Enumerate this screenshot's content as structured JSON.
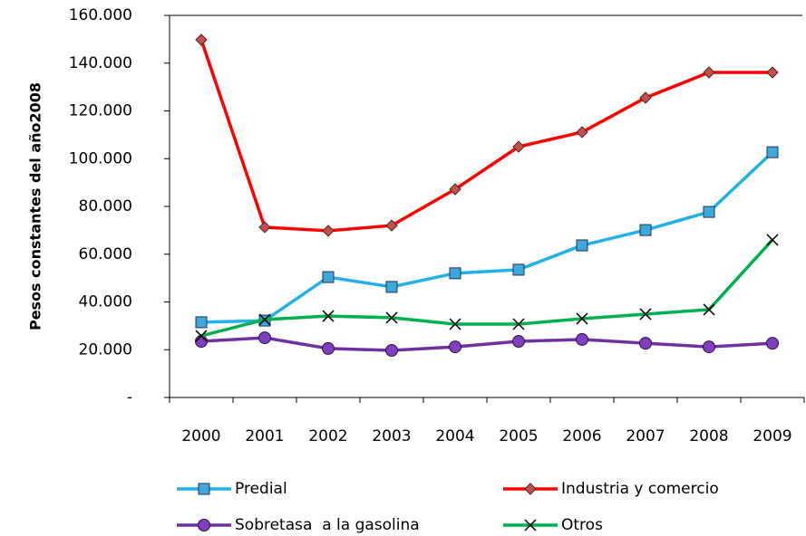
{
  "chart_data": {
    "type": "line",
    "y_label": "Pesos constantes del año2008",
    "categories": [
      "2000",
      "2001",
      "2002",
      "2003",
      "2004",
      "2005",
      "2006",
      "2007",
      "2008",
      "2009"
    ],
    "ylim": [
      0,
      160000
    ],
    "yticks": [
      {
        "value": 0,
        "label": "-"
      },
      {
        "value": 20000,
        "label": "20.000"
      },
      {
        "value": 40000,
        "label": "40.000"
      },
      {
        "value": 60000,
        "label": "60.000"
      },
      {
        "value": 80000,
        "label": "80.000"
      },
      {
        "value": 100000,
        "label": "100.000"
      },
      {
        "value": 120000,
        "label": "120.000"
      },
      {
        "value": 140000,
        "label": "140.000"
      },
      {
        "value": 160000,
        "label": "160.000"
      }
    ],
    "series": [
      {
        "name": "Predial",
        "color": "#22b0e8",
        "marker": "square",
        "marker_color": "#3fa9dc",
        "values": [
          31500,
          32200,
          50400,
          46300,
          52000,
          53500,
          63700,
          70100,
          77700,
          102700
        ]
      },
      {
        "name": "Industria y comercio",
        "color": "#ff0000",
        "marker": "diamond",
        "marker_color": "#c0504d",
        "values": [
          149800,
          71300,
          69800,
          72000,
          87200,
          105000,
          111100,
          125500,
          136100,
          136100
        ]
      },
      {
        "name": "Sobretasa  a la gasolina",
        "color": "#7030a0",
        "marker": "circle",
        "marker_color": "#7f3fbf",
        "values": [
          23500,
          25000,
          20500,
          19700,
          21200,
          23500,
          24300,
          22700,
          21200,
          22700
        ]
      },
      {
        "name": "Otros",
        "color": "#00b050",
        "marker": "x",
        "marker_color": "#000000",
        "values": [
          25800,
          32600,
          34100,
          33400,
          30700,
          30700,
          33000,
          34900,
          36800,
          66000
        ]
      }
    ]
  }
}
